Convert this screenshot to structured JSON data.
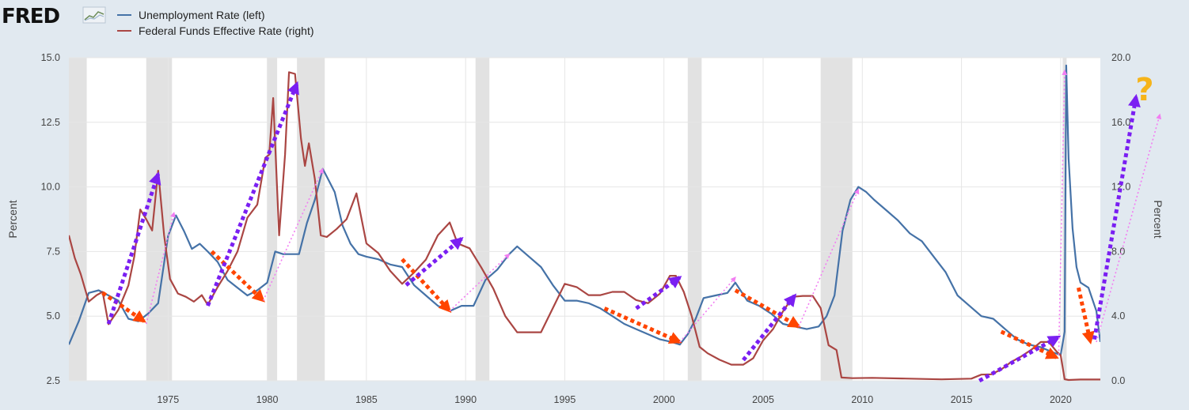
{
  "logo": {
    "text": "FRED"
  },
  "chart_data": {
    "type": "line",
    "x_ticks": [
      1975,
      1980,
      1985,
      1990,
      1995,
      2000,
      2005,
      2010,
      2015,
      2020
    ],
    "xlim": [
      1970.0,
      2022.0
    ],
    "left_axis": {
      "label": "Percent",
      "ylim": [
        2.5,
        15.0
      ],
      "ticks": [
        "2.5",
        "5.0",
        "7.5",
        "10.0",
        "12.5",
        "15.0"
      ]
    },
    "right_axis": {
      "label": "Percent",
      "ylim": [
        0.0,
        20.0
      ],
      "ticks": [
        "0.0",
        "4.0",
        "8.0",
        "12.0",
        "16.0",
        "20.0"
      ]
    },
    "grid": true,
    "recessions": [
      [
        1970.0,
        1970.9
      ],
      [
        1973.9,
        1975.2
      ],
      [
        1980.0,
        1980.5
      ],
      [
        1981.5,
        1982.9
      ],
      [
        1990.5,
        1991.2
      ],
      [
        2001.2,
        2001.9
      ],
      [
        2007.9,
        2009.5
      ],
      [
        2020.1,
        2020.3
      ]
    ],
    "series": [
      {
        "name": "Unemployment Rate (left)",
        "axis": "left",
        "color": "#4572a7",
        "x": [
          1970.0,
          1970.5,
          1971.0,
          1971.5,
          1972.0,
          1972.5,
          1973.0,
          1973.5,
          1974.0,
          1974.5,
          1975.0,
          1975.4,
          1975.8,
          1976.2,
          1976.6,
          1977.0,
          1977.5,
          1978.0,
          1978.5,
          1979.0,
          1979.5,
          1980.0,
          1980.4,
          1980.8,
          1981.2,
          1981.6,
          1982.0,
          1982.4,
          1982.8,
          1983.0,
          1983.4,
          1983.8,
          1984.2,
          1984.6,
          1985.0,
          1985.6,
          1986.2,
          1986.8,
          1987.4,
          1988.0,
          1988.6,
          1989.2,
          1989.8,
          1990.4,
          1991.0,
          1991.6,
          1992.2,
          1992.6,
          1993.2,
          1993.8,
          1994.4,
          1995.0,
          1995.6,
          1996.2,
          1996.8,
          1997.4,
          1998.0,
          1998.6,
          1999.2,
          1999.8,
          2000.4,
          2000.8,
          2001.2,
          2001.6,
          2002.0,
          2002.6,
          2003.2,
          2003.6,
          2004.2,
          2004.8,
          2005.4,
          2006.0,
          2006.6,
          2007.2,
          2007.8,
          2008.2,
          2008.6,
          2009.0,
          2009.4,
          2009.8,
          2010.2,
          2010.6,
          2011.2,
          2011.8,
          2012.4,
          2013.0,
          2013.6,
          2014.2,
          2014.8,
          2015.4,
          2016.0,
          2016.6,
          2017.2,
          2017.8,
          2018.4,
          2019.0,
          2019.6,
          2020.0,
          2020.2,
          2020.28,
          2020.4,
          2020.6,
          2020.8,
          2021.0,
          2021.4,
          2021.8,
          2022.0
        ],
        "values": [
          3.9,
          4.8,
          5.9,
          6.0,
          5.8,
          5.6,
          4.9,
          4.8,
          5.1,
          5.5,
          8.1,
          8.9,
          8.3,
          7.6,
          7.8,
          7.5,
          7.1,
          6.4,
          6.1,
          5.8,
          6.0,
          6.3,
          7.5,
          7.4,
          7.4,
          7.4,
          8.6,
          9.5,
          10.7,
          10.4,
          9.8,
          8.5,
          7.8,
          7.4,
          7.3,
          7.2,
          7.0,
          6.9,
          6.2,
          5.8,
          5.4,
          5.2,
          5.4,
          5.4,
          6.4,
          6.8,
          7.4,
          7.7,
          7.3,
          6.9,
          6.2,
          5.6,
          5.6,
          5.5,
          5.3,
          5.0,
          4.7,
          4.5,
          4.3,
          4.1,
          4.0,
          3.9,
          4.3,
          4.9,
          5.7,
          5.8,
          5.9,
          6.3,
          5.6,
          5.4,
          5.1,
          4.7,
          4.6,
          4.5,
          4.6,
          5.0,
          5.8,
          8.3,
          9.5,
          10.0,
          9.8,
          9.5,
          9.1,
          8.7,
          8.2,
          7.9,
          7.3,
          6.7,
          5.8,
          5.4,
          5.0,
          4.9,
          4.5,
          4.1,
          3.9,
          3.8,
          3.6,
          3.5,
          4.4,
          14.7,
          11.1,
          8.4,
          6.9,
          6.3,
          6.1,
          5.2,
          4.0
        ]
      },
      {
        "name": "Federal Funds Effective Rate (right)",
        "axis": "right",
        "color": "#aa4643",
        "x": [
          1970.0,
          1970.3,
          1970.6,
          1971.0,
          1971.4,
          1971.7,
          1972.0,
          1972.5,
          1973.0,
          1973.3,
          1973.6,
          1973.9,
          1974.2,
          1974.5,
          1974.8,
          1975.1,
          1975.5,
          1975.9,
          1976.3,
          1976.7,
          1977.0,
          1977.5,
          1978.0,
          1978.5,
          1979.0,
          1979.5,
          1979.9,
          1980.1,
          1980.3,
          1980.6,
          1980.9,
          1981.1,
          1981.4,
          1981.7,
          1981.9,
          1982.1,
          1982.4,
          1982.7,
          1983.0,
          1983.5,
          1984.0,
          1984.5,
          1985.0,
          1985.6,
          1986.2,
          1986.8,
          1987.4,
          1988.0,
          1988.6,
          1989.2,
          1989.6,
          1990.2,
          1990.8,
          1991.4,
          1992.0,
          1992.6,
          1993.2,
          1993.8,
          1994.4,
          1995.0,
          1995.6,
          1996.2,
          1996.8,
          1997.4,
          1998.0,
          1998.6,
          1999.2,
          1999.8,
          2000.3,
          2000.6,
          2001.0,
          2001.4,
          2001.8,
          2002.2,
          2002.8,
          2003.4,
          2004.0,
          2004.5,
          2005.0,
          2005.5,
          2006.0,
          2006.5,
          2007.0,
          2007.5,
          2007.9,
          2008.3,
          2008.7,
          2008.95,
          2009.5,
          2010.5,
          2012.0,
          2014.0,
          2015.5,
          2016.0,
          2016.5,
          2017.0,
          2017.5,
          2018.0,
          2018.5,
          2019.0,
          2019.4,
          2019.8,
          2020.0,
          2020.2,
          2020.4,
          2021.0,
          2022.0
        ],
        "values": [
          9.0,
          7.6,
          6.6,
          4.9,
          5.3,
          5.5,
          3.5,
          4.4,
          5.9,
          7.7,
          10.6,
          10.0,
          9.3,
          13.0,
          9.0,
          6.3,
          5.4,
          5.2,
          4.9,
          5.3,
          4.7,
          5.8,
          6.8,
          8.0,
          10.1,
          10.9,
          13.8,
          14.0,
          17.5,
          9.0,
          14.0,
          19.1,
          19.0,
          15.0,
          13.3,
          14.7,
          12.5,
          9.0,
          8.9,
          9.4,
          10.0,
          11.6,
          8.5,
          7.9,
          6.8,
          6.0,
          6.7,
          7.5,
          9.0,
          9.8,
          8.5,
          8.2,
          7.0,
          5.7,
          4.0,
          3.0,
          3.0,
          3.0,
          4.5,
          6.0,
          5.8,
          5.3,
          5.3,
          5.5,
          5.5,
          5.0,
          4.8,
          5.4,
          6.5,
          6.5,
          5.5,
          4.0,
          2.1,
          1.7,
          1.3,
          1.0,
          1.0,
          1.4,
          2.5,
          3.2,
          4.3,
          5.2,
          5.25,
          5.25,
          4.5,
          2.2,
          1.9,
          0.2,
          0.16,
          0.18,
          0.14,
          0.09,
          0.13,
          0.38,
          0.4,
          0.7,
          1.16,
          1.5,
          1.9,
          2.4,
          2.4,
          1.8,
          1.58,
          0.1,
          0.05,
          0.08,
          0.08
        ]
      }
    ]
  },
  "annotations": {
    "question_mark": "?",
    "dotted_arrows": [
      {
        "color": "#ff4500",
        "kind": "bold",
        "from": [
          1971.7,
          5.9
        ],
        "to": [
          1973.8,
          4.8
        ]
      },
      {
        "color": "#7a1ff2",
        "kind": "bold",
        "from": [
          1972.0,
          4.7
        ],
        "to": [
          1974.5,
          10.5
        ]
      },
      {
        "color": "#f27ef2",
        "kind": "thin",
        "from": [
          1973.9,
          4.7
        ],
        "to": [
          1975.3,
          9.0
        ]
      },
      {
        "color": "#ff4500",
        "kind": "bold",
        "from": [
          1977.2,
          7.5
        ],
        "to": [
          1979.8,
          5.6
        ]
      },
      {
        "color": "#7a1ff2",
        "kind": "bold",
        "from": [
          1977.0,
          5.4
        ],
        "to": [
          1981.5,
          14.0
        ]
      },
      {
        "color": "#f27ef2",
        "kind": "thin",
        "from": [
          1979.8,
          5.6
        ],
        "to": [
          1982.8,
          10.7
        ]
      },
      {
        "color": "#ff4500",
        "kind": "bold",
        "from": [
          1986.8,
          7.2
        ],
        "to": [
          1989.2,
          5.2
        ]
      },
      {
        "color": "#7a1ff2",
        "kind": "bold",
        "from": [
          1987.0,
          6.2
        ],
        "to": [
          1989.8,
          8.0
        ]
      },
      {
        "color": "#f27ef2",
        "kind": "thin",
        "from": [
          1989.2,
          5.2
        ],
        "to": [
          1992.2,
          7.4
        ]
      },
      {
        "color": "#ff4500",
        "kind": "bold",
        "from": [
          1997.0,
          5.3
        ],
        "to": [
          2000.8,
          4.0
        ]
      },
      {
        "color": "#7a1ff2",
        "kind": "bold",
        "from": [
          1998.6,
          5.3
        ],
        "to": [
          2000.8,
          6.5
        ]
      },
      {
        "color": "#f27ef2",
        "kind": "thin",
        "from": [
          2000.8,
          4.0
        ],
        "to": [
          2003.6,
          6.5
        ]
      },
      {
        "color": "#ff4500",
        "kind": "bold",
        "from": [
          2003.6,
          6.0
        ],
        "to": [
          2006.8,
          4.6
        ]
      },
      {
        "color": "#7a1ff2",
        "kind": "bold",
        "from": [
          2004.0,
          3.3
        ],
        "to": [
          2006.6,
          5.8
        ]
      },
      {
        "color": "#f27ef2",
        "kind": "thin",
        "from": [
          2006.8,
          4.6
        ],
        "to": [
          2009.8,
          9.9
        ]
      },
      {
        "color": "#ff4500",
        "kind": "bold",
        "from": [
          2017.0,
          4.4
        ],
        "to": [
          2019.8,
          3.4
        ]
      },
      {
        "color": "#7a1ff2",
        "kind": "bold",
        "from": [
          2015.9,
          2.5
        ],
        "to": [
          2019.9,
          4.2
        ]
      },
      {
        "color": "#f27ef2",
        "kind": "thin",
        "from": [
          2019.9,
          3.5
        ],
        "to": [
          2020.2,
          14.5
        ]
      },
      {
        "color": "#ff4500",
        "kind": "bold",
        "from": [
          2020.9,
          6.1
        ],
        "to": [
          2021.5,
          4.0
        ]
      },
      {
        "color": "#7a1ff2",
        "kind": "bold",
        "from": [
          2021.7,
          4.1
        ],
        "to": [
          2023.8,
          13.5
        ]
      },
      {
        "color": "#f27ef2",
        "kind": "thin",
        "from": [
          2021.8,
          4.0
        ],
        "to": [
          2025.0,
          12.8
        ]
      }
    ]
  }
}
